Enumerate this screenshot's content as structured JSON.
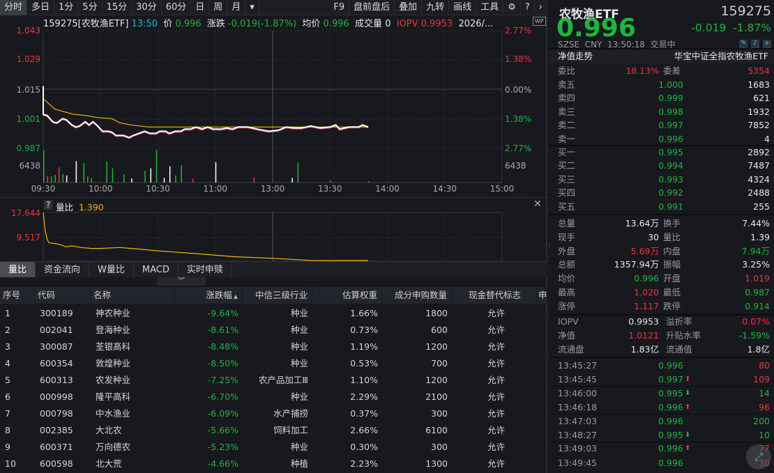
{
  "toolbar": {
    "periods": [
      "分时",
      "多日",
      "1分",
      "5分",
      "15分",
      "30分",
      "60分",
      "日",
      "周",
      "月"
    ],
    "active": 0,
    "menu_arrow": "▾",
    "tools": [
      "F9",
      "盘前盘后",
      "叠加",
      "九转",
      "画线",
      "工具"
    ]
  },
  "infobar": {
    "code_name": "159275[农牧渔ETF]",
    "time": "13:50",
    "price_label": "价",
    "price": "0.996",
    "change_label": "涨跌",
    "change": "-0.019(-1.87%)",
    "avg_label": "均价",
    "avg": "0.996",
    "vol_label": "成交量",
    "vol": "0",
    "iopv_label": "IOPV",
    "iopv": "0.9953",
    "date": "2026/...",
    "wp_icon": "WP"
  },
  "price_chart": {
    "y_labels_left": [
      "1.043",
      "1.029",
      "1.015",
      "1.001",
      "0.987"
    ],
    "y_labels_right": [
      "2.77%",
      "1.38%",
      "0.00%",
      "1.38%",
      "2.77%"
    ],
    "vol_label": "6438",
    "x_labels": [
      "09:30",
      "10:00",
      "10:30",
      "11:00",
      "13:00",
      "13:30",
      "14:00",
      "14:30",
      "15:00"
    ],
    "prev_close": 1.015,
    "price": [
      [
        0,
        1.0165
      ],
      [
        0,
        1.003
      ],
      [
        2,
        1.0025
      ],
      [
        5,
        0.9995
      ],
      [
        7,
        0.999
      ],
      [
        8,
        0.9995
      ],
      [
        10,
        1.001
      ],
      [
        12,
        1.0005
      ],
      [
        15,
        0.998
      ],
      [
        17,
        0.997
      ],
      [
        19,
        0.9975
      ],
      [
        22,
        0.9995
      ],
      [
        24,
        0.998
      ],
      [
        26,
        0.9995
      ],
      [
        28,
        0.998
      ],
      [
        31,
        0.995
      ],
      [
        34,
        0.995
      ],
      [
        36,
        0.9945
      ],
      [
        38,
        0.993
      ],
      [
        42,
        0.993
      ],
      [
        45,
        0.992
      ],
      [
        47,
        0.993
      ],
      [
        50,
        0.994
      ],
      [
        53,
        0.995
      ],
      [
        56,
        0.994
      ],
      [
        59,
        0.994
      ],
      [
        61,
        0.995
      ],
      [
        64,
        0.995
      ],
      [
        66,
        0.994
      ],
      [
        69,
        0.995
      ],
      [
        72,
        0.995
      ],
      [
        74,
        0.996
      ],
      [
        77,
        0.996
      ],
      [
        80,
        0.997
      ],
      [
        83,
        0.996
      ],
      [
        86,
        0.997
      ],
      [
        89,
        0.996
      ],
      [
        93,
        0.996
      ],
      [
        96,
        0.9965
      ],
      [
        99,
        0.996
      ],
      [
        102,
        0.997
      ],
      [
        107,
        0.997
      ],
      [
        112,
        0.996
      ],
      [
        118,
        0.995
      ],
      [
        123,
        0.9955
      ],
      [
        127,
        0.997
      ],
      [
        131,
        0.9965
      ],
      [
        135,
        0.9965
      ],
      [
        140,
        0.9975
      ],
      [
        145,
        0.9965
      ],
      [
        150,
        0.997
      ],
      [
        153,
        0.998
      ],
      [
        155,
        0.996
      ],
      [
        160,
        0.997
      ],
      [
        165,
        0.997
      ],
      [
        167,
        0.998
      ],
      [
        170,
        0.997
      ]
    ],
    "avg": [
      [
        0,
        1.0105
      ],
      [
        3,
        1.008
      ],
      [
        6,
        1.0055
      ],
      [
        10,
        1.0045
      ],
      [
        16,
        1.003
      ],
      [
        22,
        1.0025
      ],
      [
        28,
        1.0015
      ],
      [
        36,
        1.001
      ],
      [
        40,
        0.999
      ],
      [
        46,
        0.998
      ],
      [
        55,
        0.997
      ],
      [
        70,
        0.997
      ],
      [
        170,
        0.997
      ]
    ],
    "volume": [
      [
        0,
        6400,
        "g"
      ],
      [
        2,
        1300,
        "r"
      ],
      [
        4,
        1200,
        "g"
      ],
      [
        6,
        1500,
        "g"
      ],
      [
        8,
        3000,
        "r"
      ],
      [
        10,
        1700,
        "g"
      ],
      [
        12,
        1400,
        "w"
      ],
      [
        17,
        4200,
        "w"
      ],
      [
        21,
        3800,
        "g"
      ],
      [
        23,
        1200,
        "g"
      ],
      [
        25,
        900,
        "g"
      ],
      [
        33,
        4100,
        "g"
      ],
      [
        36,
        2800,
        "g"
      ],
      [
        42,
        1600,
        "g"
      ],
      [
        46,
        800,
        "w"
      ],
      [
        53,
        2300,
        "g"
      ],
      [
        56,
        2800,
        "w"
      ],
      [
        59,
        6438,
        "g"
      ],
      [
        63,
        900,
        "w"
      ],
      [
        66,
        3200,
        "w"
      ],
      [
        69,
        1400,
        "g"
      ],
      [
        72,
        3400,
        "g"
      ],
      [
        78,
        800,
        "r"
      ],
      [
        90,
        4000,
        "w"
      ],
      [
        110,
        1000,
        "r"
      ],
      [
        130,
        900,
        "w"
      ],
      [
        133,
        3900,
        "g"
      ],
      [
        150,
        400,
        "r"
      ],
      [
        170,
        300,
        "r"
      ]
    ]
  },
  "ratio_chart": {
    "help": "?",
    "label": "量比",
    "value": "1.390",
    "y_labels": [
      "17.644",
      "9.517"
    ],
    "close_icon": "✕",
    "ymax": 17.644,
    "ymin": 1.39,
    "series": [
      [
        0,
        17.64
      ],
      [
        1,
        12
      ],
      [
        2,
        9
      ],
      [
        3,
        7.8
      ],
      [
        6,
        7.6
      ],
      [
        9,
        7.2
      ],
      [
        12,
        6.5
      ],
      [
        15,
        6.8
      ],
      [
        20,
        6.3
      ],
      [
        25,
        6
      ],
      [
        30,
        6
      ],
      [
        40,
        6.3
      ],
      [
        50,
        5.8
      ],
      [
        60,
        5.2
      ],
      [
        80,
        4.3
      ],
      [
        100,
        3.3
      ],
      [
        120,
        2.8
      ],
      [
        140,
        2.1
      ],
      [
        155,
        1.6
      ],
      [
        170,
        1.39
      ]
    ]
  },
  "tabs": [
    "量比",
    "资金流向",
    "W量比",
    "MACD",
    "实时申赎"
  ],
  "table": {
    "headers": [
      "序号",
      "代码",
      "名称",
      "涨跌幅",
      "中信三级行业",
      "估算权重",
      "成分申购数量",
      "现金替代标志",
      "申"
    ],
    "sort_icon": "▲",
    "collapse_icon": "︾",
    "rows": [
      [
        "1",
        "300189",
        "神农种业",
        "-9.64%",
        "种业",
        "1.66%",
        "1800",
        "允许"
      ],
      [
        "2",
        "002041",
        "登海种业",
        "-8.61%",
        "种业",
        "0.73%",
        "600",
        "允许"
      ],
      [
        "3",
        "300087",
        "荃银高科",
        "-8.48%",
        "种业",
        "1.19%",
        "1200",
        "允许"
      ],
      [
        "4",
        "600354",
        "敦煌种业",
        "-8.50%",
        "种业",
        "0.53%",
        "700",
        "允许"
      ],
      [
        "5",
        "600313",
        "农发种业",
        "-7.25%",
        "农产品加工Ⅲ",
        "1.10%",
        "1200",
        "允许"
      ],
      [
        "6",
        "000998",
        "隆平高科",
        "-6.70%",
        "种业",
        "2.29%",
        "2100",
        "允许"
      ],
      [
        "7",
        "000798",
        "中水渔业",
        "-6.09%",
        "水产捕捞",
        "0.37%",
        "300",
        "允许"
      ],
      [
        "8",
        "002385",
        "大北农",
        "-5.66%",
        "饲料加工",
        "2.66%",
        "6100",
        "允许"
      ],
      [
        "9",
        "600371",
        "万向德农",
        "-5.23%",
        "种业",
        "0.30%",
        "300",
        "允许"
      ],
      [
        "10",
        "600598",
        "北大荒",
        "-4.66%",
        "种植",
        "2.23%",
        "1300",
        "允许"
      ]
    ]
  },
  "quote": {
    "name": "农牧渔ETF",
    "code": "159275",
    "price": "0.996",
    "change": "-0.019",
    "change_pct": "-1.87%",
    "exchange": "SZSE",
    "currency": "CNY",
    "time": "13:50:18",
    "status": "交易中",
    "nav_trend": "净值走势",
    "full_name": "华宝中证全指农牧渔ETF",
    "ratio_label": "委比",
    "ratio": "18.13%",
    "diff_label": "委差",
    "diff": "5354",
    "asks": [
      [
        "卖五",
        "1.000",
        "1683"
      ],
      [
        "卖四",
        "0.999",
        "621"
      ],
      [
        "卖三",
        "0.998",
        "1932"
      ],
      [
        "卖二",
        "0.997",
        "7852"
      ],
      [
        "卖一",
        "0.996",
        "4"
      ]
    ],
    "bids": [
      [
        "买一",
        "0.995",
        "2892"
      ],
      [
        "买二",
        "0.994",
        "7487"
      ],
      [
        "买三",
        "0.993",
        "4324"
      ],
      [
        "买四",
        "0.992",
        "2488"
      ],
      [
        "买五",
        "0.991",
        "255"
      ]
    ],
    "stats": [
      [
        "总量",
        "13.64万",
        "w",
        "换手",
        "7.44%",
        "w"
      ],
      [
        "现手",
        "30",
        "w",
        "量比",
        "1.39",
        "w"
      ],
      [
        "外盘",
        "5.69万",
        "r",
        "内盘",
        "7.94万",
        "g"
      ],
      [
        "总额",
        "1357.94万",
        "w",
        "振幅",
        "3.25%",
        "w"
      ],
      [
        "均价",
        "0.996",
        "g",
        "开盘",
        "1.019",
        "r"
      ],
      [
        "最高",
        "1.020",
        "r",
        "最低",
        "0.987",
        "g"
      ],
      [
        "涨停",
        "1.117",
        "r",
        "跌停",
        "0.914",
        "g"
      ]
    ],
    "etf_stats": [
      [
        "IOPV",
        "0.9953",
        "w",
        "溢折率",
        "0.07%",
        "r"
      ],
      [
        "净值",
        "1.0121",
        "r",
        "升贴水率",
        "-1.59%",
        "g"
      ],
      [
        "流通盘",
        "1.83亿",
        "w",
        "流通值",
        "1.8亿",
        "w"
      ]
    ],
    "ticks": [
      [
        "13:45:27",
        "0.996",
        "",
        "80",
        "r"
      ],
      [
        "13:45:45",
        "0.997",
        "up",
        "109",
        "r"
      ],
      [
        "13:46:00",
        "0.995",
        "down",
        "14",
        "g"
      ],
      [
        "13:46:18",
        "0.996",
        "up",
        "96",
        "r"
      ],
      [
        "13:47:03",
        "0.996",
        "",
        "200",
        "g"
      ],
      [
        "13:48:27",
        "0.995",
        "down",
        "10",
        "g"
      ],
      [
        "13:49:03",
        "0.996",
        "up",
        "77",
        "r"
      ],
      [
        "13:49:45",
        "0.996",
        "",
        "30",
        "r"
      ]
    ]
  },
  "colors": {
    "up": "#f0323c",
    "down": "#20b53e",
    "avg_line": "#f2b705",
    "price_line": "#ffffff",
    "bg": "#17191e"
  }
}
